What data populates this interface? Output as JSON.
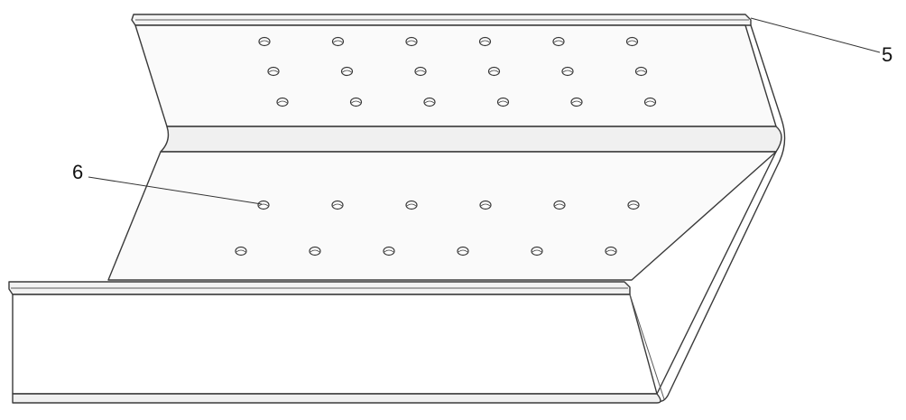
{
  "callouts": {
    "label_5": "5",
    "label_6": "6"
  },
  "holes": {
    "upper_rows": 3,
    "upper_columns": 6,
    "lower_rows": 2,
    "lower_columns": 6
  }
}
